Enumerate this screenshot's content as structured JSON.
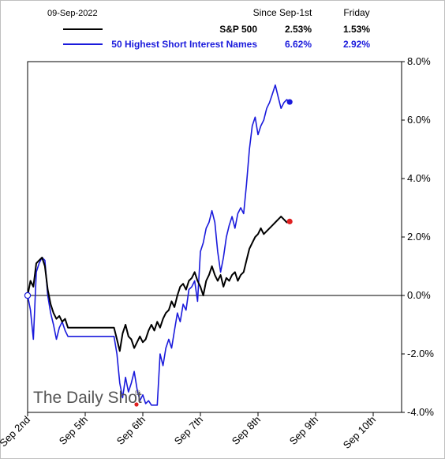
{
  "legend": {
    "date": "09-Sep-2022",
    "col1_header": "Since Sep-1st",
    "col2_header": "Friday",
    "rows": [
      {
        "name": "S&P 500",
        "since": "2.53%",
        "friday": "1.53%",
        "color": "#000000"
      },
      {
        "name": "50 Highest Short Interest Names",
        "since": "6.62%",
        "friday": "2.92%",
        "color": "#1a1adc"
      }
    ]
  },
  "watermark": "The Daily Shot",
  "chart_data": {
    "type": "line",
    "x_categories": [
      "Sep 2nd",
      "Sep 5th",
      "Sep 6th",
      "Sep 7th",
      "Sep 8th",
      "Sep 9th",
      "Sep 10th"
    ],
    "y_ticks": [
      "8.0%",
      "6.0%",
      "4.0%",
      "2.0%",
      "0.0%",
      "-2.0%",
      "-4.0%"
    ],
    "ylim": [
      -4,
      8
    ],
    "xlim": [
      0,
      6.5
    ],
    "grid": false,
    "series": [
      {
        "name": "S&P 500",
        "color": "#000000",
        "points": [
          [
            0.0,
            0.0
          ],
          [
            0.05,
            0.5
          ],
          [
            0.1,
            0.3
          ],
          [
            0.15,
            1.1
          ],
          [
            0.2,
            1.2
          ],
          [
            0.25,
            1.3
          ],
          [
            0.3,
            1.0
          ],
          [
            0.35,
            0.2
          ],
          [
            0.4,
            -0.3
          ],
          [
            0.45,
            -0.6
          ],
          [
            0.5,
            -0.8
          ],
          [
            0.55,
            -0.7
          ],
          [
            0.6,
            -0.9
          ],
          [
            0.65,
            -0.8
          ],
          [
            0.7,
            -1.1
          ],
          [
            0.75,
            -1.1
          ],
          [
            1.5,
            -1.1
          ],
          [
            1.55,
            -1.5
          ],
          [
            1.6,
            -1.9
          ],
          [
            1.65,
            -1.3
          ],
          [
            1.7,
            -1.0
          ],
          [
            1.75,
            -1.4
          ],
          [
            1.8,
            -1.5
          ],
          [
            1.85,
            -1.8
          ],
          [
            1.9,
            -1.6
          ],
          [
            1.95,
            -1.4
          ],
          [
            2.0,
            -1.6
          ],
          [
            2.05,
            -1.5
          ],
          [
            2.1,
            -1.2
          ],
          [
            2.15,
            -1.0
          ],
          [
            2.2,
            -1.2
          ],
          [
            2.25,
            -0.9
          ],
          [
            2.3,
            -1.1
          ],
          [
            2.35,
            -0.8
          ],
          [
            2.4,
            -0.6
          ],
          [
            2.45,
            -0.5
          ],
          [
            2.5,
            -0.2
          ],
          [
            2.55,
            -0.4
          ],
          [
            2.6,
            0.0
          ],
          [
            2.65,
            0.3
          ],
          [
            2.7,
            0.4
          ],
          [
            2.75,
            0.2
          ],
          [
            2.8,
            0.5
          ],
          [
            2.85,
            0.6
          ],
          [
            2.9,
            0.8
          ],
          [
            2.95,
            0.5
          ],
          [
            3.0,
            0.3
          ],
          [
            3.05,
            0.0
          ],
          [
            3.1,
            0.5
          ],
          [
            3.15,
            0.7
          ],
          [
            3.2,
            1.0
          ],
          [
            3.25,
            0.7
          ],
          [
            3.3,
            0.5
          ],
          [
            3.35,
            0.7
          ],
          [
            3.4,
            0.3
          ],
          [
            3.45,
            0.6
          ],
          [
            3.5,
            0.5
          ],
          [
            3.55,
            0.7
          ],
          [
            3.6,
            0.8
          ],
          [
            3.65,
            0.5
          ],
          [
            3.7,
            0.7
          ],
          [
            3.75,
            0.8
          ],
          [
            3.8,
            1.2
          ],
          [
            3.85,
            1.6
          ],
          [
            3.9,
            1.8
          ],
          [
            3.95,
            2.0
          ],
          [
            4.0,
            2.1
          ],
          [
            4.05,
            2.3
          ],
          [
            4.1,
            2.1
          ],
          [
            4.15,
            2.2
          ],
          [
            4.2,
            2.3
          ],
          [
            4.25,
            2.4
          ],
          [
            4.3,
            2.5
          ],
          [
            4.35,
            2.6
          ],
          [
            4.4,
            2.7
          ],
          [
            4.45,
            2.6
          ],
          [
            4.5,
            2.5
          ],
          [
            4.55,
            2.53
          ]
        ]
      },
      {
        "name": "50 Highest Short Interest Names",
        "color": "#1a1adc",
        "points": [
          [
            0.0,
            0.0
          ],
          [
            0.05,
            -0.5
          ],
          [
            0.1,
            -1.5
          ],
          [
            0.15,
            0.8
          ],
          [
            0.2,
            1.1
          ],
          [
            0.25,
            1.3
          ],
          [
            0.3,
            1.2
          ],
          [
            0.35,
            0.0
          ],
          [
            0.4,
            -0.6
          ],
          [
            0.45,
            -1.0
          ],
          [
            0.5,
            -1.5
          ],
          [
            0.55,
            -1.1
          ],
          [
            0.6,
            -0.9
          ],
          [
            0.65,
            -1.2
          ],
          [
            0.7,
            -1.4
          ],
          [
            0.75,
            -1.4
          ],
          [
            1.5,
            -1.4
          ],
          [
            1.55,
            -2.0
          ],
          [
            1.6,
            -3.0
          ],
          [
            1.65,
            -3.5
          ],
          [
            1.7,
            -2.8
          ],
          [
            1.75,
            -3.3
          ],
          [
            1.8,
            -3.0
          ],
          [
            1.85,
            -2.6
          ],
          [
            1.9,
            -3.2
          ],
          [
            1.95,
            -3.6
          ],
          [
            2.0,
            -3.4
          ],
          [
            2.05,
            -3.7
          ],
          [
            2.1,
            -3.6
          ],
          [
            2.15,
            -3.75
          ],
          [
            2.2,
            -3.75
          ],
          [
            2.25,
            -3.75
          ],
          [
            2.3,
            -2.0
          ],
          [
            2.35,
            -2.4
          ],
          [
            2.4,
            -1.8
          ],
          [
            2.45,
            -1.5
          ],
          [
            2.5,
            -1.8
          ],
          [
            2.55,
            -1.2
          ],
          [
            2.6,
            -0.6
          ],
          [
            2.65,
            -0.9
          ],
          [
            2.7,
            -0.3
          ],
          [
            2.75,
            -0.5
          ],
          [
            2.8,
            0.2
          ],
          [
            2.85,
            0.3
          ],
          [
            2.9,
            0.5
          ],
          [
            2.95,
            -0.2
          ],
          [
            3.0,
            1.5
          ],
          [
            3.05,
            1.8
          ],
          [
            3.1,
            2.3
          ],
          [
            3.15,
            2.5
          ],
          [
            3.2,
            2.9
          ],
          [
            3.25,
            2.5
          ],
          [
            3.3,
            1.5
          ],
          [
            3.35,
            0.8
          ],
          [
            3.4,
            1.3
          ],
          [
            3.45,
            2.0
          ],
          [
            3.5,
            2.4
          ],
          [
            3.55,
            2.7
          ],
          [
            3.6,
            2.3
          ],
          [
            3.65,
            2.8
          ],
          [
            3.7,
            3.0
          ],
          [
            3.75,
            2.8
          ],
          [
            3.8,
            3.8
          ],
          [
            3.85,
            5.0
          ],
          [
            3.9,
            5.8
          ],
          [
            3.95,
            6.1
          ],
          [
            4.0,
            5.5
          ],
          [
            4.05,
            5.8
          ],
          [
            4.1,
            6.0
          ],
          [
            4.15,
            6.4
          ],
          [
            4.2,
            6.6
          ],
          [
            4.25,
            6.9
          ],
          [
            4.3,
            7.2
          ],
          [
            4.35,
            6.8
          ],
          [
            4.4,
            6.4
          ],
          [
            4.45,
            6.6
          ],
          [
            4.5,
            6.7
          ],
          [
            4.55,
            6.62
          ]
        ]
      }
    ],
    "markers": [
      {
        "series": "S&P 500",
        "x": 4.55,
        "y": 2.53,
        "color": "#e02020"
      },
      {
        "series": "50 Highest Short Interest Names",
        "x": 4.55,
        "y": 6.62,
        "color": "#1a1adc"
      },
      {
        "x": 0.0,
        "y": 0.0,
        "color": "#ffffff"
      }
    ]
  }
}
